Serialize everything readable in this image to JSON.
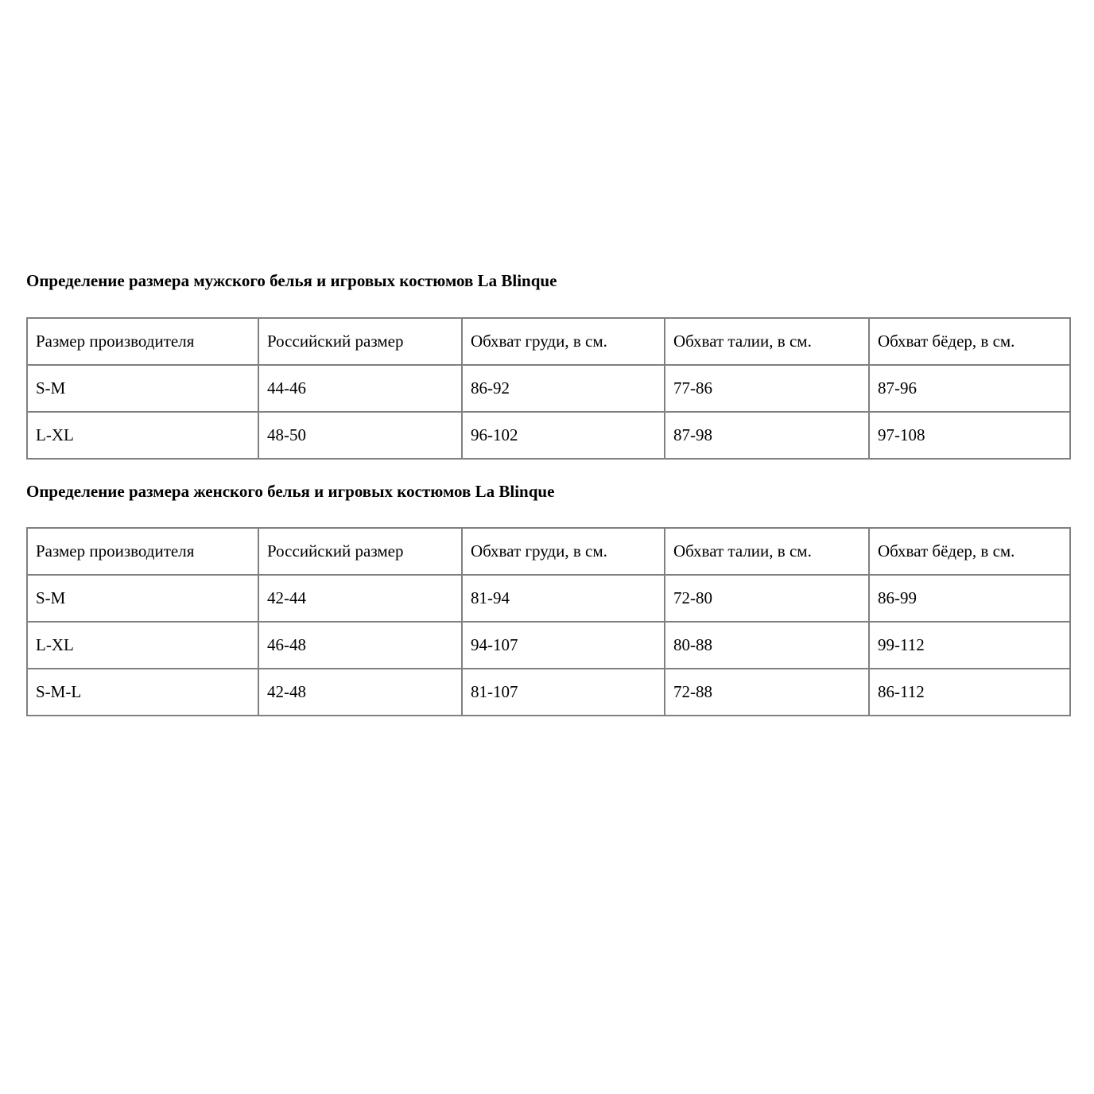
{
  "colors": {
    "background": "#ffffff",
    "text": "#000000",
    "table_border": "#808080"
  },
  "tables": [
    {
      "title": "Определение размера мужского белья и игровых костюмов La Blinque",
      "headers": [
        "Размер производителя",
        "Российский размер",
        "Обхват груди, в см.",
        "Обхват талии, в см.",
        "Обхват бёдер, в см."
      ],
      "rows": [
        [
          "S-M",
          "44-46",
          "86-92",
          "77-86",
          "87-96"
        ],
        [
          "L-XL",
          "48-50",
          "96-102",
          "87-98",
          "97-108"
        ]
      ]
    },
    {
      "title": "Определение размера женского белья и игровых костюмов La Blinque",
      "headers": [
        "Размер производителя",
        "Российский размер",
        "Обхват груди, в см.",
        "Обхват талии, в см.",
        "Обхват бёдер, в см."
      ],
      "rows": [
        [
          "S-M",
          "42-44",
          "81-94",
          "72-80",
          "86-99"
        ],
        [
          "L-XL",
          "46-48",
          "94-107",
          "80-88",
          "99-112"
        ],
        [
          "S-M-L",
          "42-48",
          "81-107",
          "72-88",
          "86-112"
        ]
      ]
    }
  ]
}
